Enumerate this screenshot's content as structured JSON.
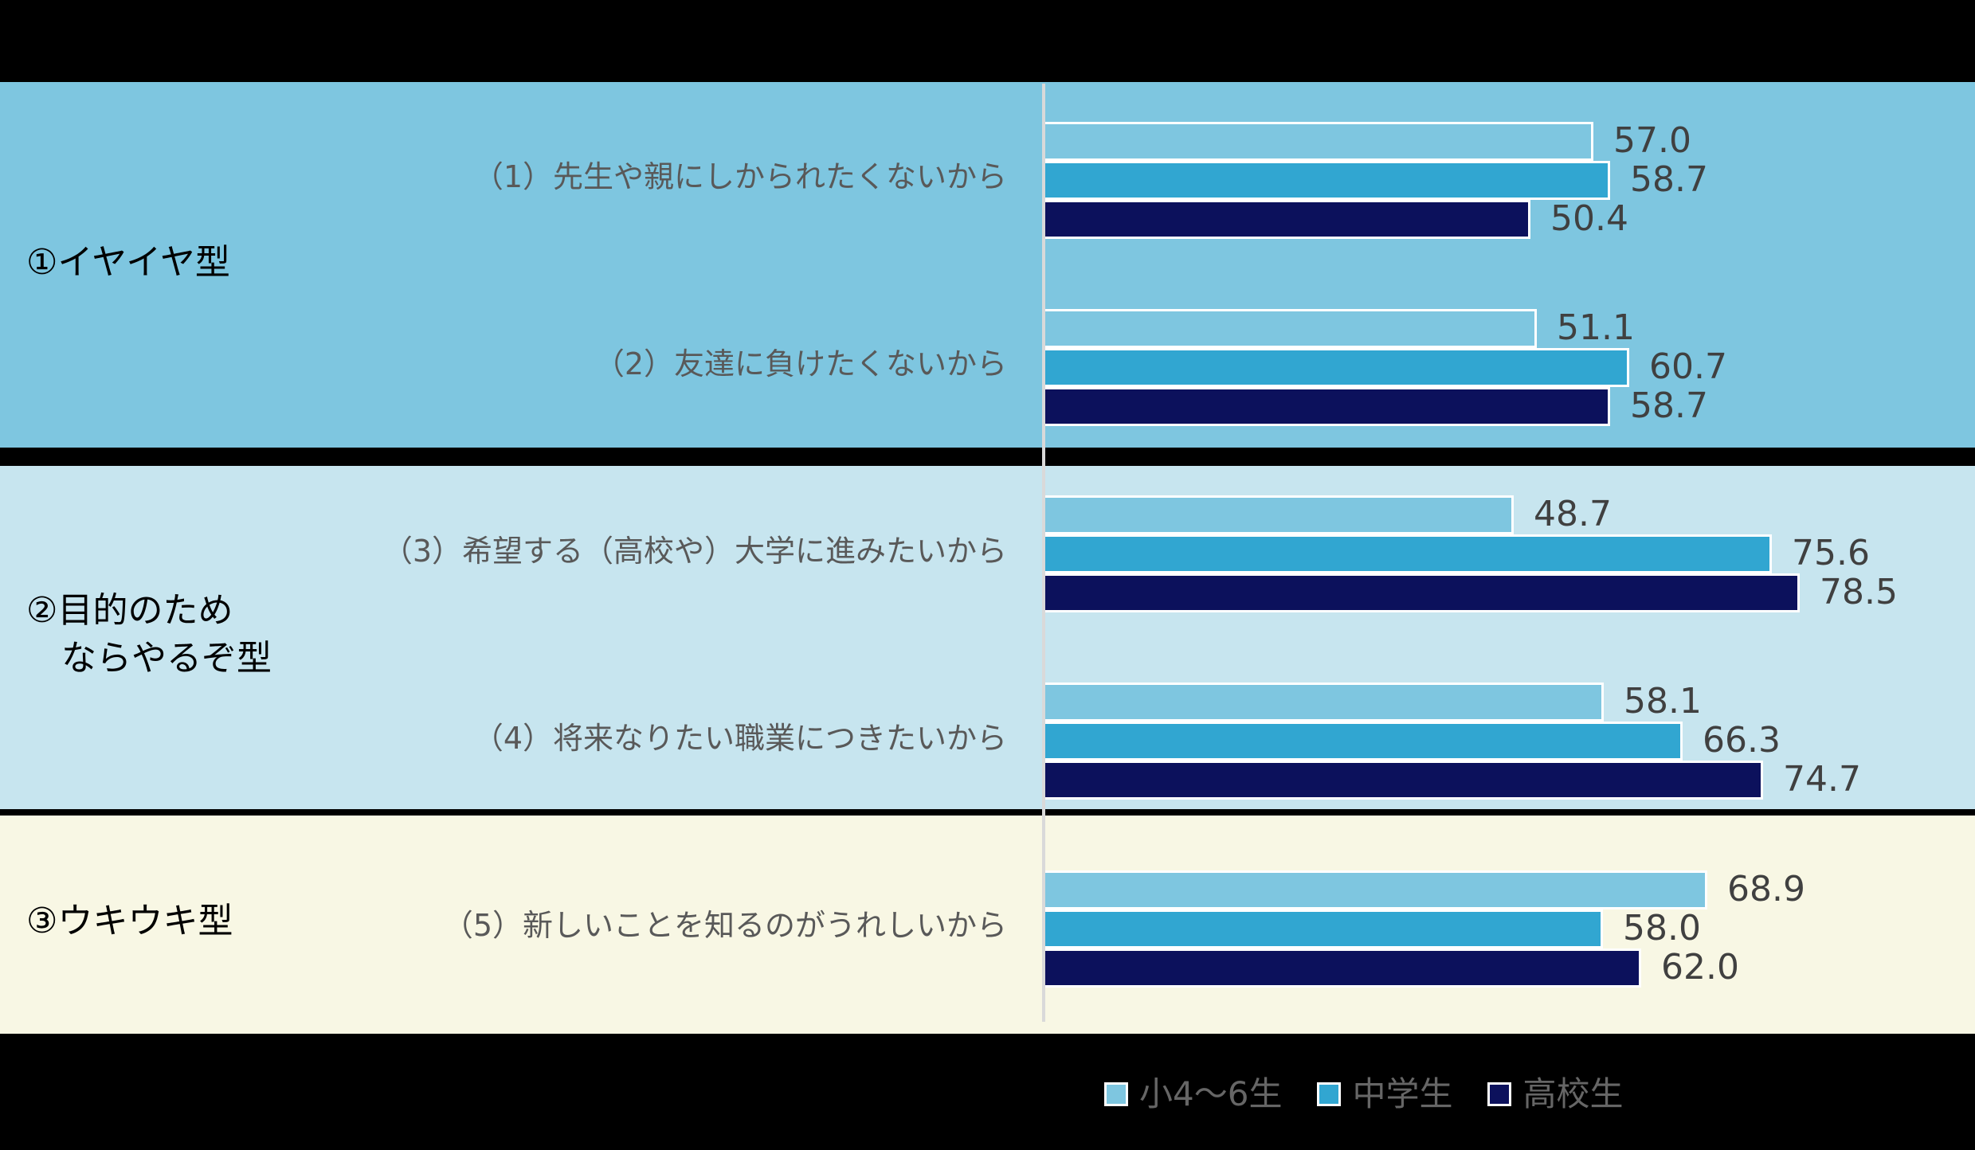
{
  "colors": {
    "background": "#000000",
    "section_bg": [
      "#7EC6E0",
      "#C7E5EF",
      "#F8F7E4"
    ],
    "series": [
      "#7EC6E0",
      "#31A6D1",
      "#0C115C"
    ],
    "axis": "#D9D9D9",
    "item_text": "#595959",
    "value_text": "#404040",
    "legend_text": "#666666"
  },
  "categories": [
    {
      "label": "①イヤイヤ型"
    },
    {
      "label": "②目的のため\n　ならやるぞ型"
    },
    {
      "label": "③ウキウキ型"
    }
  ],
  "items": [
    {
      "label": "（1）先生や親にしかられたくないから",
      "values": [
        "57.0",
        "58.7",
        "50.4"
      ]
    },
    {
      "label": "（2）友達に負けたくないから",
      "values": [
        "51.1",
        "60.7",
        "58.7"
      ]
    },
    {
      "label": "（3）希望する（高校や）大学に進みたいから",
      "values": [
        "48.7",
        "75.6",
        "78.5"
      ]
    },
    {
      "label": "（4）将来なりたい職業につきたいから",
      "values": [
        "58.1",
        "66.3",
        "74.7"
      ]
    },
    {
      "label": "（5）新しいことを知るのがうれしいから",
      "values": [
        "68.9",
        "58.0",
        "62.0"
      ]
    }
  ],
  "legend": [
    {
      "label": "小4〜6生"
    },
    {
      "label": "中学生"
    },
    {
      "label": "高校生"
    }
  ],
  "chart_data": {
    "type": "bar",
    "orientation": "horizontal",
    "title": "",
    "xlabel": "",
    "ylabel": "",
    "xlim": [
      0,
      100
    ],
    "grid": false,
    "legend_position": "bottom",
    "groups": [
      {
        "name": "①イヤイヤ型",
        "categories": [
          "（1）先生や親にしかられたくないから",
          "（2）友達に負けたくないから"
        ]
      },
      {
        "name": "②目的のためならやるぞ型",
        "categories": [
          "（3）希望する（高校や）大学に進みたいから",
          "（4）将来なりたい職業につきたいから"
        ]
      },
      {
        "name": "③ウキウキ型",
        "categories": [
          "（5）新しいことを知るのがうれしいから"
        ]
      }
    ],
    "categories": [
      "（1）先生や親にしかられたくないから",
      "（2）友達に負けたくないから",
      "（3）希望する（高校や）大学に進みたいから",
      "（4）将来なりたい職業につきたいから",
      "（5）新しいことを知るのがうれしいから"
    ],
    "series": [
      {
        "name": "小4〜6生",
        "color": "#7EC6E0",
        "values": [
          57.0,
          51.1,
          48.7,
          58.1,
          68.9
        ]
      },
      {
        "name": "中学生",
        "color": "#31A6D1",
        "values": [
          58.7,
          60.7,
          75.6,
          66.3,
          58.0
        ]
      },
      {
        "name": "高校生",
        "color": "#0C115C",
        "values": [
          50.4,
          58.7,
          78.5,
          74.7,
          62.0
        ]
      }
    ]
  }
}
